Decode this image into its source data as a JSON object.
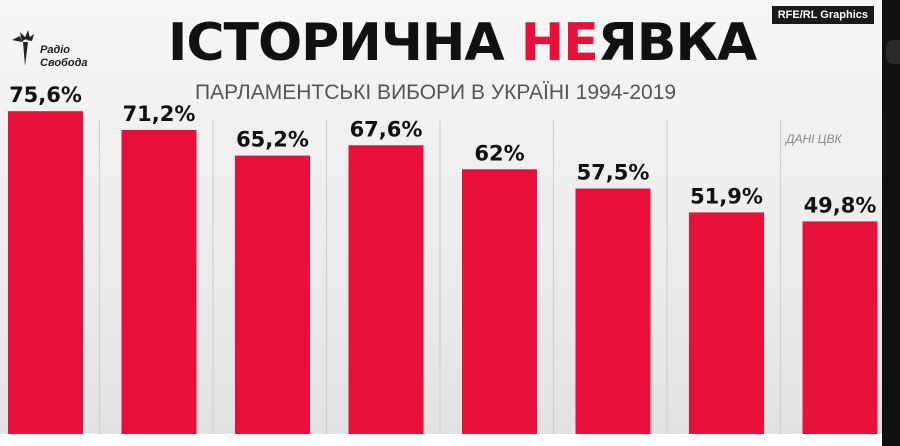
{
  "header": {
    "logo_line1": "Радіо",
    "logo_line2": "Свобода",
    "credit": "RFE/RL Graphics",
    "title_part1": "ІСТОРИЧНА ",
    "title_highlight": "НЕ",
    "title_part2": "ЯВКА",
    "subtitle": "ПАРЛАМЕНТСЬКІ ВИБОРИ В УКРАЇНІ 1994-2019",
    "source": "ДАНІ ЦВК"
  },
  "colors": {
    "bar": "#e8103a",
    "highlight": "#e8103a",
    "divider": "#cfcfcf",
    "label": "#111111"
  },
  "chart_data": {
    "type": "bar",
    "title": "ІСТОРИЧНА НЕЯВКА",
    "subtitle": "ПАРЛАМЕНТСЬКІ ВИБОРИ В УКРАЇНІ 1994-2019",
    "categories": [],
    "values": [
      75.6,
      71.2,
      65.2,
      67.6,
      62,
      57.5,
      51.9,
      49.8
    ],
    "labels": [
      "75,6%",
      "71,2%",
      "65,2%",
      "67,6%",
      "62%",
      "57,5%",
      "51,9%",
      "49,8%"
    ],
    "xlabel": "",
    "ylabel": "",
    "ylim": [
      0,
      100
    ],
    "grid": false,
    "legend": "none",
    "source": "ДАНІ ЦВК"
  }
}
